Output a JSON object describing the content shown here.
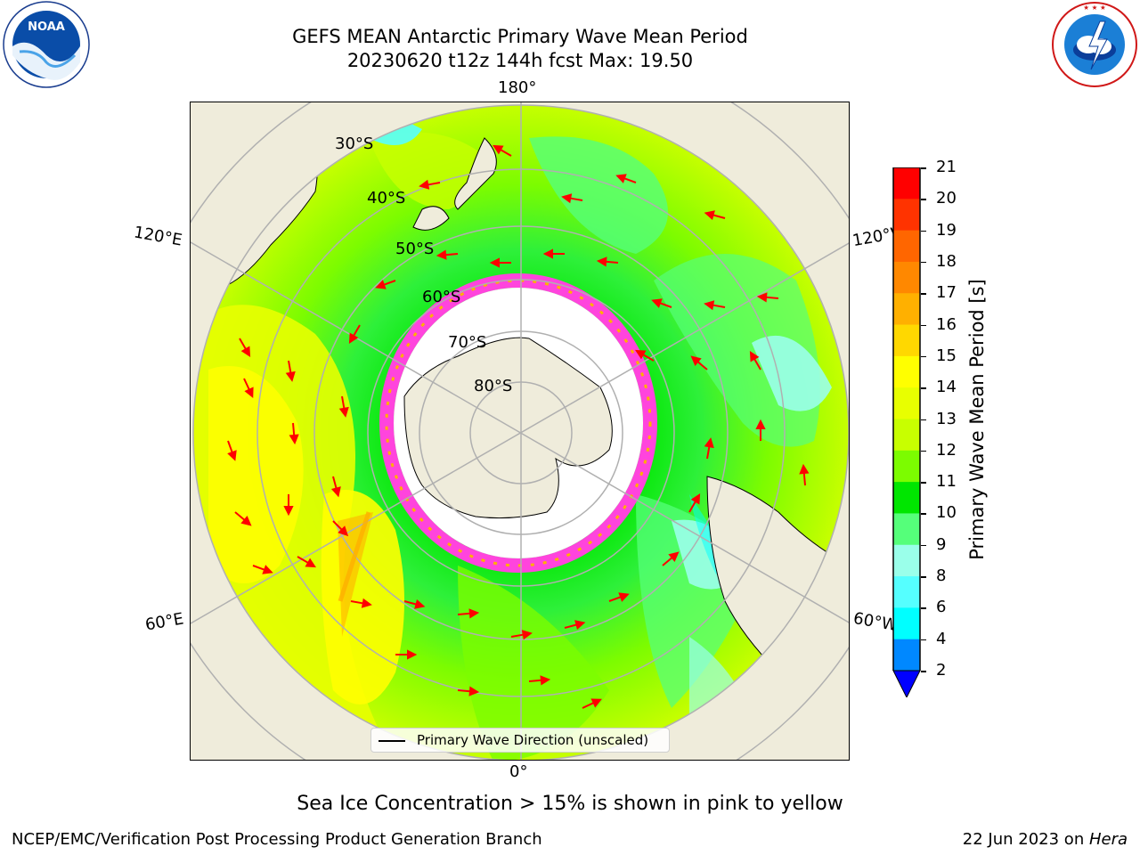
{
  "title": {
    "line1": "GEFS MEAN Antarctic Primary Wave Mean Period",
    "line2": "20230620 t12z 144h fcst   Max: 19.50"
  },
  "map": {
    "longitude_labels": {
      "top": "180°",
      "bottom": "0°",
      "left_upper": "120°E",
      "left_lower": "60°E",
      "right_upper": "120°W",
      "right_lower": "60°W"
    },
    "latitude_labels": [
      "30°S",
      "40°S",
      "50°S",
      "60°S",
      "70°S",
      "80°S"
    ],
    "colors": {
      "land": "#efecdb",
      "ice": "#ffffff",
      "arrow": "#ff0000",
      "grid": "#b0b0b0",
      "ice_edge": "#ff44dd"
    }
  },
  "legend": {
    "label": "Primary Wave Direction (unscaled)"
  },
  "colorbar": {
    "title": "Primary Wave Mean Period [s]",
    "ticks": [
      "21",
      "20",
      "19",
      "18",
      "17",
      "16",
      "15",
      "14",
      "13",
      "12",
      "11",
      "10",
      "9",
      "8",
      "6",
      "4",
      "2"
    ],
    "colors": [
      "#ff0000",
      "#ff3300",
      "#ff6600",
      "#ff8800",
      "#ffb000",
      "#ffd800",
      "#ffff00",
      "#e8ff00",
      "#c8ff00",
      "#7cfc00",
      "#00e600",
      "#55ff7a",
      "#9affea",
      "#55ffff",
      "#00ffff",
      "#0088ff"
    ],
    "underflow_color": "#0000ff"
  },
  "caption": "Sea Ice Concentration > 15% is shown in pink to yellow",
  "footer": {
    "left": "NCEP/EMC/Verification Post Processing Product Generation Branch",
    "date": "22 Jun 2023 on ",
    "host": "Hera"
  },
  "logos": {
    "noaa": "NOAA",
    "nws": "NATIONAL WEATHER SERVICE"
  }
}
